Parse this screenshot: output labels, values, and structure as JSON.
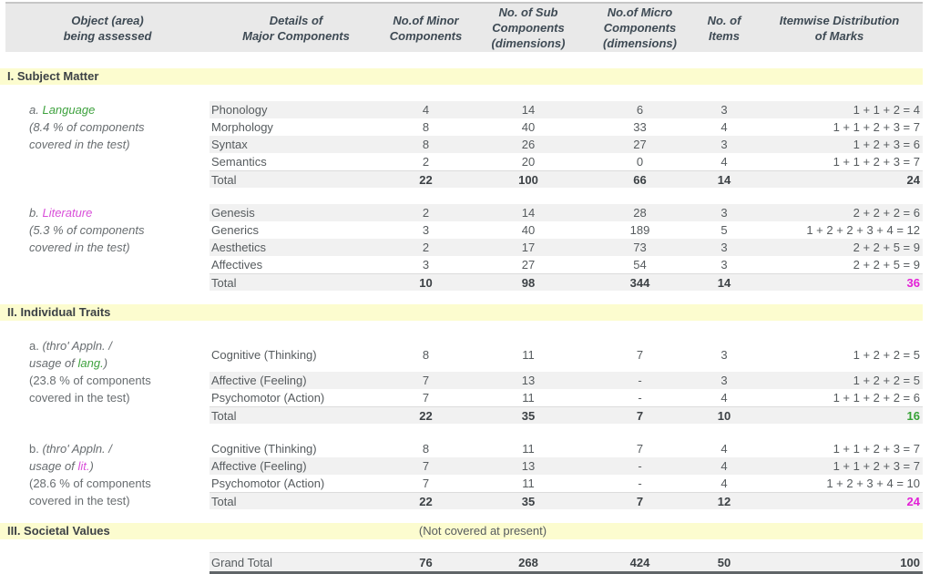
{
  "table": {
    "colors": {
      "header_bg": "#e9e9e9",
      "section_band_bg": "#fcfccf",
      "row_stripe": "#f1f1f1",
      "green_accent": "#3fa23f",
      "magenta_accent": "#e320d6",
      "body_text": "#565b5e",
      "bold_text": "#3c4145",
      "header_text": "#3e4a54"
    },
    "columns": [
      {
        "label": "Object (area)\nbeing assessed"
      },
      {
        "label": "Details of\nMajor Components"
      },
      {
        "label": "No.of Minor\nComponents"
      },
      {
        "label": "No. of Sub\nComponents\n(dimensions)"
      },
      {
        "label": "No.of Micro\nComponents\n(dimensions)"
      },
      {
        "label": "No. of\nItems"
      },
      {
        "label": "Itemwise Distribution\nof Marks"
      }
    ],
    "sections": [
      {
        "title": "I. Subject Matter",
        "groups": [
          {
            "rows": [
              {
                "label": [
                  [
                    {
                      "t": "a. ",
                      "c": "mi"
                    },
                    {
                      "t": "Language",
                      "c": "gi"
                    }
                  ]
                ],
                "component": "Phonology",
                "minor": "4",
                "sub": "14",
                "micro": "6",
                "items": "3",
                "marks": "1 + 1 + 2 = 4",
                "shade": true
              },
              {
                "label": [
                  [
                    {
                      "t": "(8.4 % of components",
                      "c": "mi"
                    }
                  ]
                ],
                "component": "Morphology",
                "minor": "8",
                "sub": "40",
                "micro": "33",
                "items": "4",
                "marks": "1 + 1 + 2 + 3 = 7"
              },
              {
                "label": [
                  [
                    {
                      "t": "covered in the test)",
                      "c": "mi"
                    }
                  ]
                ],
                "component": "Syntax",
                "minor": "8",
                "sub": "26",
                "micro": "27",
                "items": "3",
                "marks": "1 + 2 + 3 = 6",
                "shade": true
              },
              {
                "component": "Semantics",
                "minor": "2",
                "sub": "20",
                "micro": "0",
                "items": "4",
                "marks": "1 + 1 + 2 + 3 = 7"
              },
              {
                "component": "Total",
                "minor": "22",
                "sub": "100",
                "micro": "66",
                "items": "14",
                "marks": "24",
                "shade": true,
                "total": true
              }
            ]
          },
          {
            "rows": [
              {
                "label": [
                  [
                    {
                      "t": "b. ",
                      "c": "mi"
                    },
                    {
                      "t": "Literature",
                      "c": "pi"
                    }
                  ]
                ],
                "component": "Genesis",
                "minor": "2",
                "sub": "14",
                "micro": "28",
                "items": "3",
                "marks": "2 + 2 + 2 = 6",
                "shade": true
              },
              {
                "label": [
                  [
                    {
                      "t": "(5.3 % of components",
                      "c": "mi"
                    }
                  ]
                ],
                "component": "Generics",
                "minor": "3",
                "sub": "40",
                "micro": "189",
                "items": "5",
                "marks": "1 + 2 + 2 + 3 + 4 = 12"
              },
              {
                "label": [
                  [
                    {
                      "t": "covered in the test)",
                      "c": "mi"
                    }
                  ]
                ],
                "component": "Aesthetics",
                "minor": "2",
                "sub": "17",
                "micro": "73",
                "items": "3",
                "marks": "2 + 2 + 5 = 9",
                "shade": true
              },
              {
                "component": "Affectives",
                "minor": "3",
                "sub": "27",
                "micro": "54",
                "items": "3",
                "marks": "2 + 2 + 5 = 9"
              },
              {
                "component": "Total",
                "minor": "10",
                "sub": "98",
                "micro": "344",
                "items": "14",
                "marks": "36",
                "shade": true,
                "total": true,
                "marks_cls": "mk-magenta"
              }
            ]
          }
        ]
      },
      {
        "title": "II. Individual Traits",
        "groups": [
          {
            "rows": [
              {
                "label": [
                  [
                    {
                      "t": "a. ",
                      "c": "m"
                    },
                    {
                      "t": "(thro' Appln. /",
                      "c": "mi"
                    }
                  ],
                  [
                    {
                      "t": "usage of ",
                      "c": "mi"
                    },
                    {
                      "t": "lang.",
                      "c": "gi"
                    },
                    {
                      "t": ")",
                      "c": "mi"
                    }
                  ]
                ],
                "tall": true,
                "component": "Cognitive (Thinking)",
                "minor": "8",
                "sub": "11",
                "micro": "7",
                "items": "3",
                "marks": "1 + 2 + 2 = 5"
              },
              {
                "label": [
                  [
                    {
                      "t": "(23.8 % of components",
                      "c": "m"
                    }
                  ]
                ],
                "component": "Affective (Feeling)",
                "minor": "7",
                "sub": "13",
                "micro": "-",
                "items": "3",
                "marks": "1 + 2 + 2 = 5",
                "shade": true
              },
              {
                "label": [
                  [
                    {
                      "t": "covered in the test)",
                      "c": "m"
                    }
                  ]
                ],
                "component": "Psychomotor (Action)",
                "minor": "7",
                "sub": "11",
                "micro": "-",
                "items": "4",
                "marks": "1 + 1 + 2 + 2 = 6"
              },
              {
                "component": "Total",
                "minor": "22",
                "sub": "35",
                "micro": "7",
                "items": "10",
                "marks": "16",
                "shade": true,
                "total": true,
                "marks_cls": "mk-green"
              }
            ]
          },
          {
            "rows": [
              {
                "label": [
                  [
                    {
                      "t": "b. ",
                      "c": "m"
                    },
                    {
                      "t": "(thro' Appln. /",
                      "c": "mi"
                    }
                  ]
                ],
                "component": "Cognitive (Thinking)",
                "minor": "8",
                "sub": "11",
                "micro": "7",
                "items": "4",
                "marks": "1 + 1 + 2 + 3 = 7"
              },
              {
                "label": [
                  [
                    {
                      "t": "usage of ",
                      "c": "mi"
                    },
                    {
                      "t": "lit.",
                      "c": "pi"
                    },
                    {
                      "t": ")",
                      "c": "mi"
                    }
                  ]
                ],
                "component": "Affective (Feeling)",
                "minor": "7",
                "sub": "13",
                "micro": "-",
                "items": "4",
                "marks": "1 + 1 + 2 + 3 = 7",
                "shade": true
              },
              {
                "label": [
                  [
                    {
                      "t": "(28.6 % of components",
                      "c": "m"
                    }
                  ]
                ],
                "component": "Psychomotor (Action)",
                "minor": "7",
                "sub": "11",
                "micro": "-",
                "items": "4",
                "marks": "1 + 2 + 3 + 4 = 10"
              },
              {
                "label": [
                  [
                    {
                      "t": "covered in the test)",
                      "c": "m"
                    }
                  ]
                ],
                "component": "Total",
                "minor": "22",
                "sub": "35",
                "micro": "7",
                "items": "12",
                "marks": "24",
                "shade": true,
                "total": true,
                "marks_cls": "mk-magenta"
              }
            ]
          }
        ]
      },
      {
        "title": "III. Societal Values",
        "note": "(Not covered at present)",
        "groups": []
      }
    ],
    "grand_total": {
      "component": "Grand Total",
      "minor": "76",
      "sub": "268",
      "micro": "424",
      "items": "50",
      "marks": "100"
    }
  }
}
